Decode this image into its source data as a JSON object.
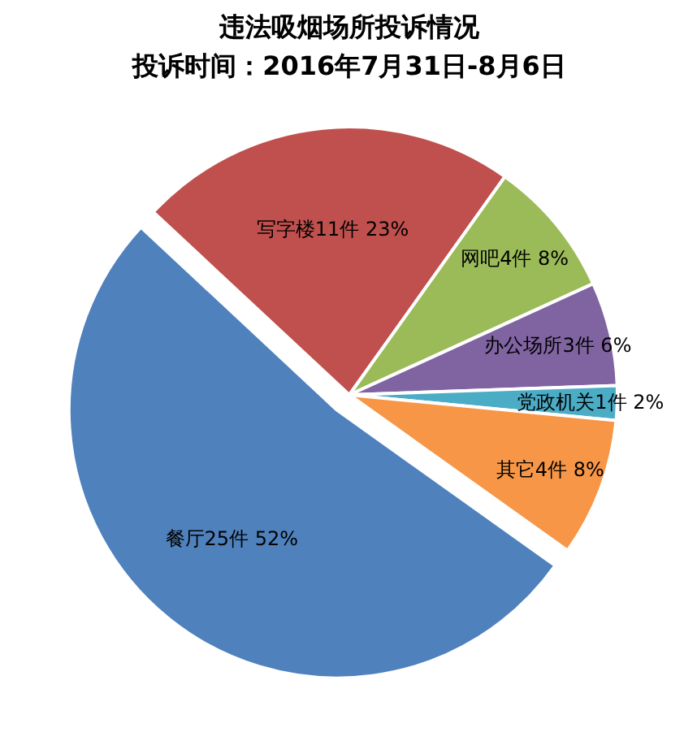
{
  "chart_data": {
    "type": "pie",
    "title": "违法吸烟场所投诉情况",
    "subtitle": "投诉时间：2016年7月31日-8月6日",
    "categories": [
      "写字楼11件 23%",
      "网吧4件 8%",
      "办公场所3件 6%",
      "党政机关1件 2%",
      "其它4件 8%",
      "餐厅25件 52%"
    ],
    "values": [
      11,
      4,
      3,
      1,
      4,
      25
    ],
    "colors": [
      "#c0504d",
      "#9bbb59",
      "#8064a2",
      "#4bacc6",
      "#f79646",
      "#4f81bd"
    ]
  }
}
